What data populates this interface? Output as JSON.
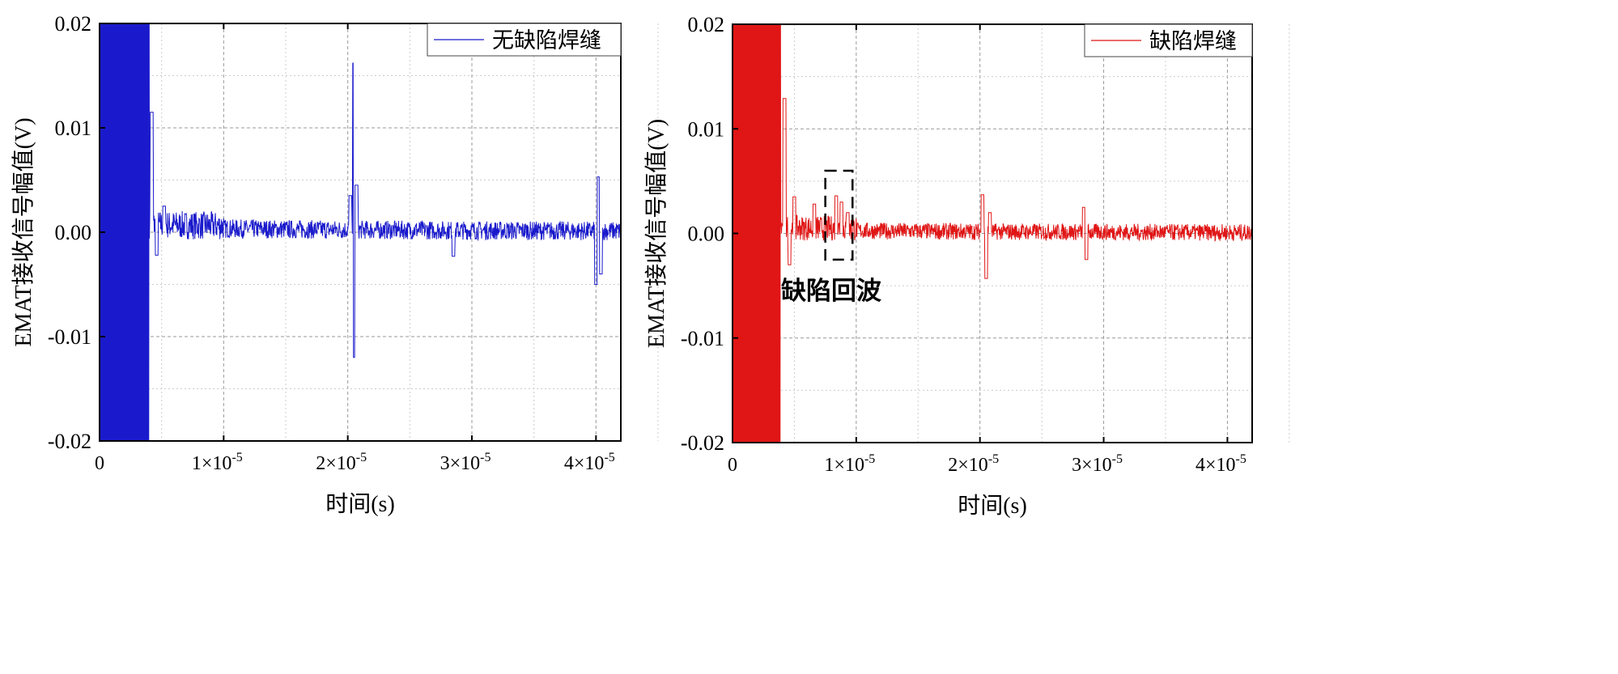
{
  "chart_data": [
    {
      "type": "line",
      "xlabel": "时间(s)",
      "ylabel": "EMAT接收信号幅值(V)",
      "xlim": [
        0,
        4.2e-05
      ],
      "ylim": [
        -0.02,
        0.02
      ],
      "xticks": [
        0,
        1e-05,
        2e-05,
        3e-05,
        4e-05
      ],
      "xtick_labels": [
        "0",
        "1×10",
        "2×10",
        "3×10",
        "4×10"
      ],
      "xtick_exp": "-5",
      "yticks": [
        0.02,
        0.01,
        0.0,
        -0.01,
        -0.02
      ],
      "ytick_labels": [
        "0.02",
        "0.01",
        "0.00",
        "-0.01",
        "-0.02"
      ],
      "grid": true,
      "legend": {
        "label": "无缺陷焊缝",
        "placement": "top-right"
      },
      "series": [
        {
          "name": "无缺陷焊缝",
          "color": "#1a1acc",
          "saturated_until": 4e-06,
          "noise_amplitude": 0.0009,
          "noise_offset": 0.0004,
          "key_points": [
            [
              4.2e-06,
              0.0115
            ],
            [
              4.6e-06,
              -0.0022
            ],
            [
              5.2e-06,
              0.0025
            ],
            [
              2.02e-05,
              0.0035
            ],
            [
              2.05e-05,
              0.0162
            ],
            [
              2.055e-05,
              -0.012
            ],
            [
              2.07e-05,
              0.0045
            ],
            [
              2.85e-05,
              -0.0023
            ],
            [
              4e-05,
              -0.005
            ],
            [
              4.02e-05,
              0.0053
            ],
            [
              4.04e-05,
              -0.004
            ]
          ]
        }
      ]
    },
    {
      "type": "line",
      "xlabel": "时间(s)",
      "ylabel": "EMAT接收信号幅值(V)",
      "xlim": [
        0,
        4.2e-05
      ],
      "ylim": [
        -0.02,
        0.02
      ],
      "xticks": [
        0,
        1e-05,
        2e-05,
        3e-05,
        4e-05
      ],
      "xtick_labels": [
        "0",
        "1×10",
        "2×10",
        "3×10",
        "4×10"
      ],
      "xtick_exp": "-5",
      "yticks": [
        0.02,
        0.01,
        0.0,
        -0.01,
        -0.02
      ],
      "ytick_labels": [
        "0.02",
        "0.01",
        "0.00",
        "-0.01",
        "-0.02"
      ],
      "grid": true,
      "legend": {
        "label": "缺陷焊缝",
        "placement": "top-right"
      },
      "annotation": {
        "text": "缺陷回波",
        "x_range": [
          7.5e-06,
          9.7e-06
        ],
        "y_range": [
          -0.0025,
          0.006
        ]
      },
      "series": [
        {
          "name": "缺陷焊缝",
          "color": "#e01515",
          "saturated_until": 3.9e-06,
          "noise_amplitude": 0.0008,
          "noise_offset": 0.0003,
          "key_points": [
            [
              4.2e-06,
              0.0129
            ],
            [
              4.6e-06,
              -0.003
            ],
            [
              5e-06,
              0.0035
            ],
            [
              6.6e-06,
              0.0028
            ],
            [
              8.4e-06,
              0.0036
            ],
            [
              8.8e-06,
              0.003
            ],
            [
              9.3e-06,
              0.002
            ],
            [
              2.02e-05,
              0.0037
            ],
            [
              2.05e-05,
              -0.0043
            ],
            [
              2.08e-05,
              0.002
            ],
            [
              2.84e-05,
              0.0025
            ],
            [
              2.86e-05,
              -0.0025
            ]
          ]
        }
      ]
    }
  ]
}
